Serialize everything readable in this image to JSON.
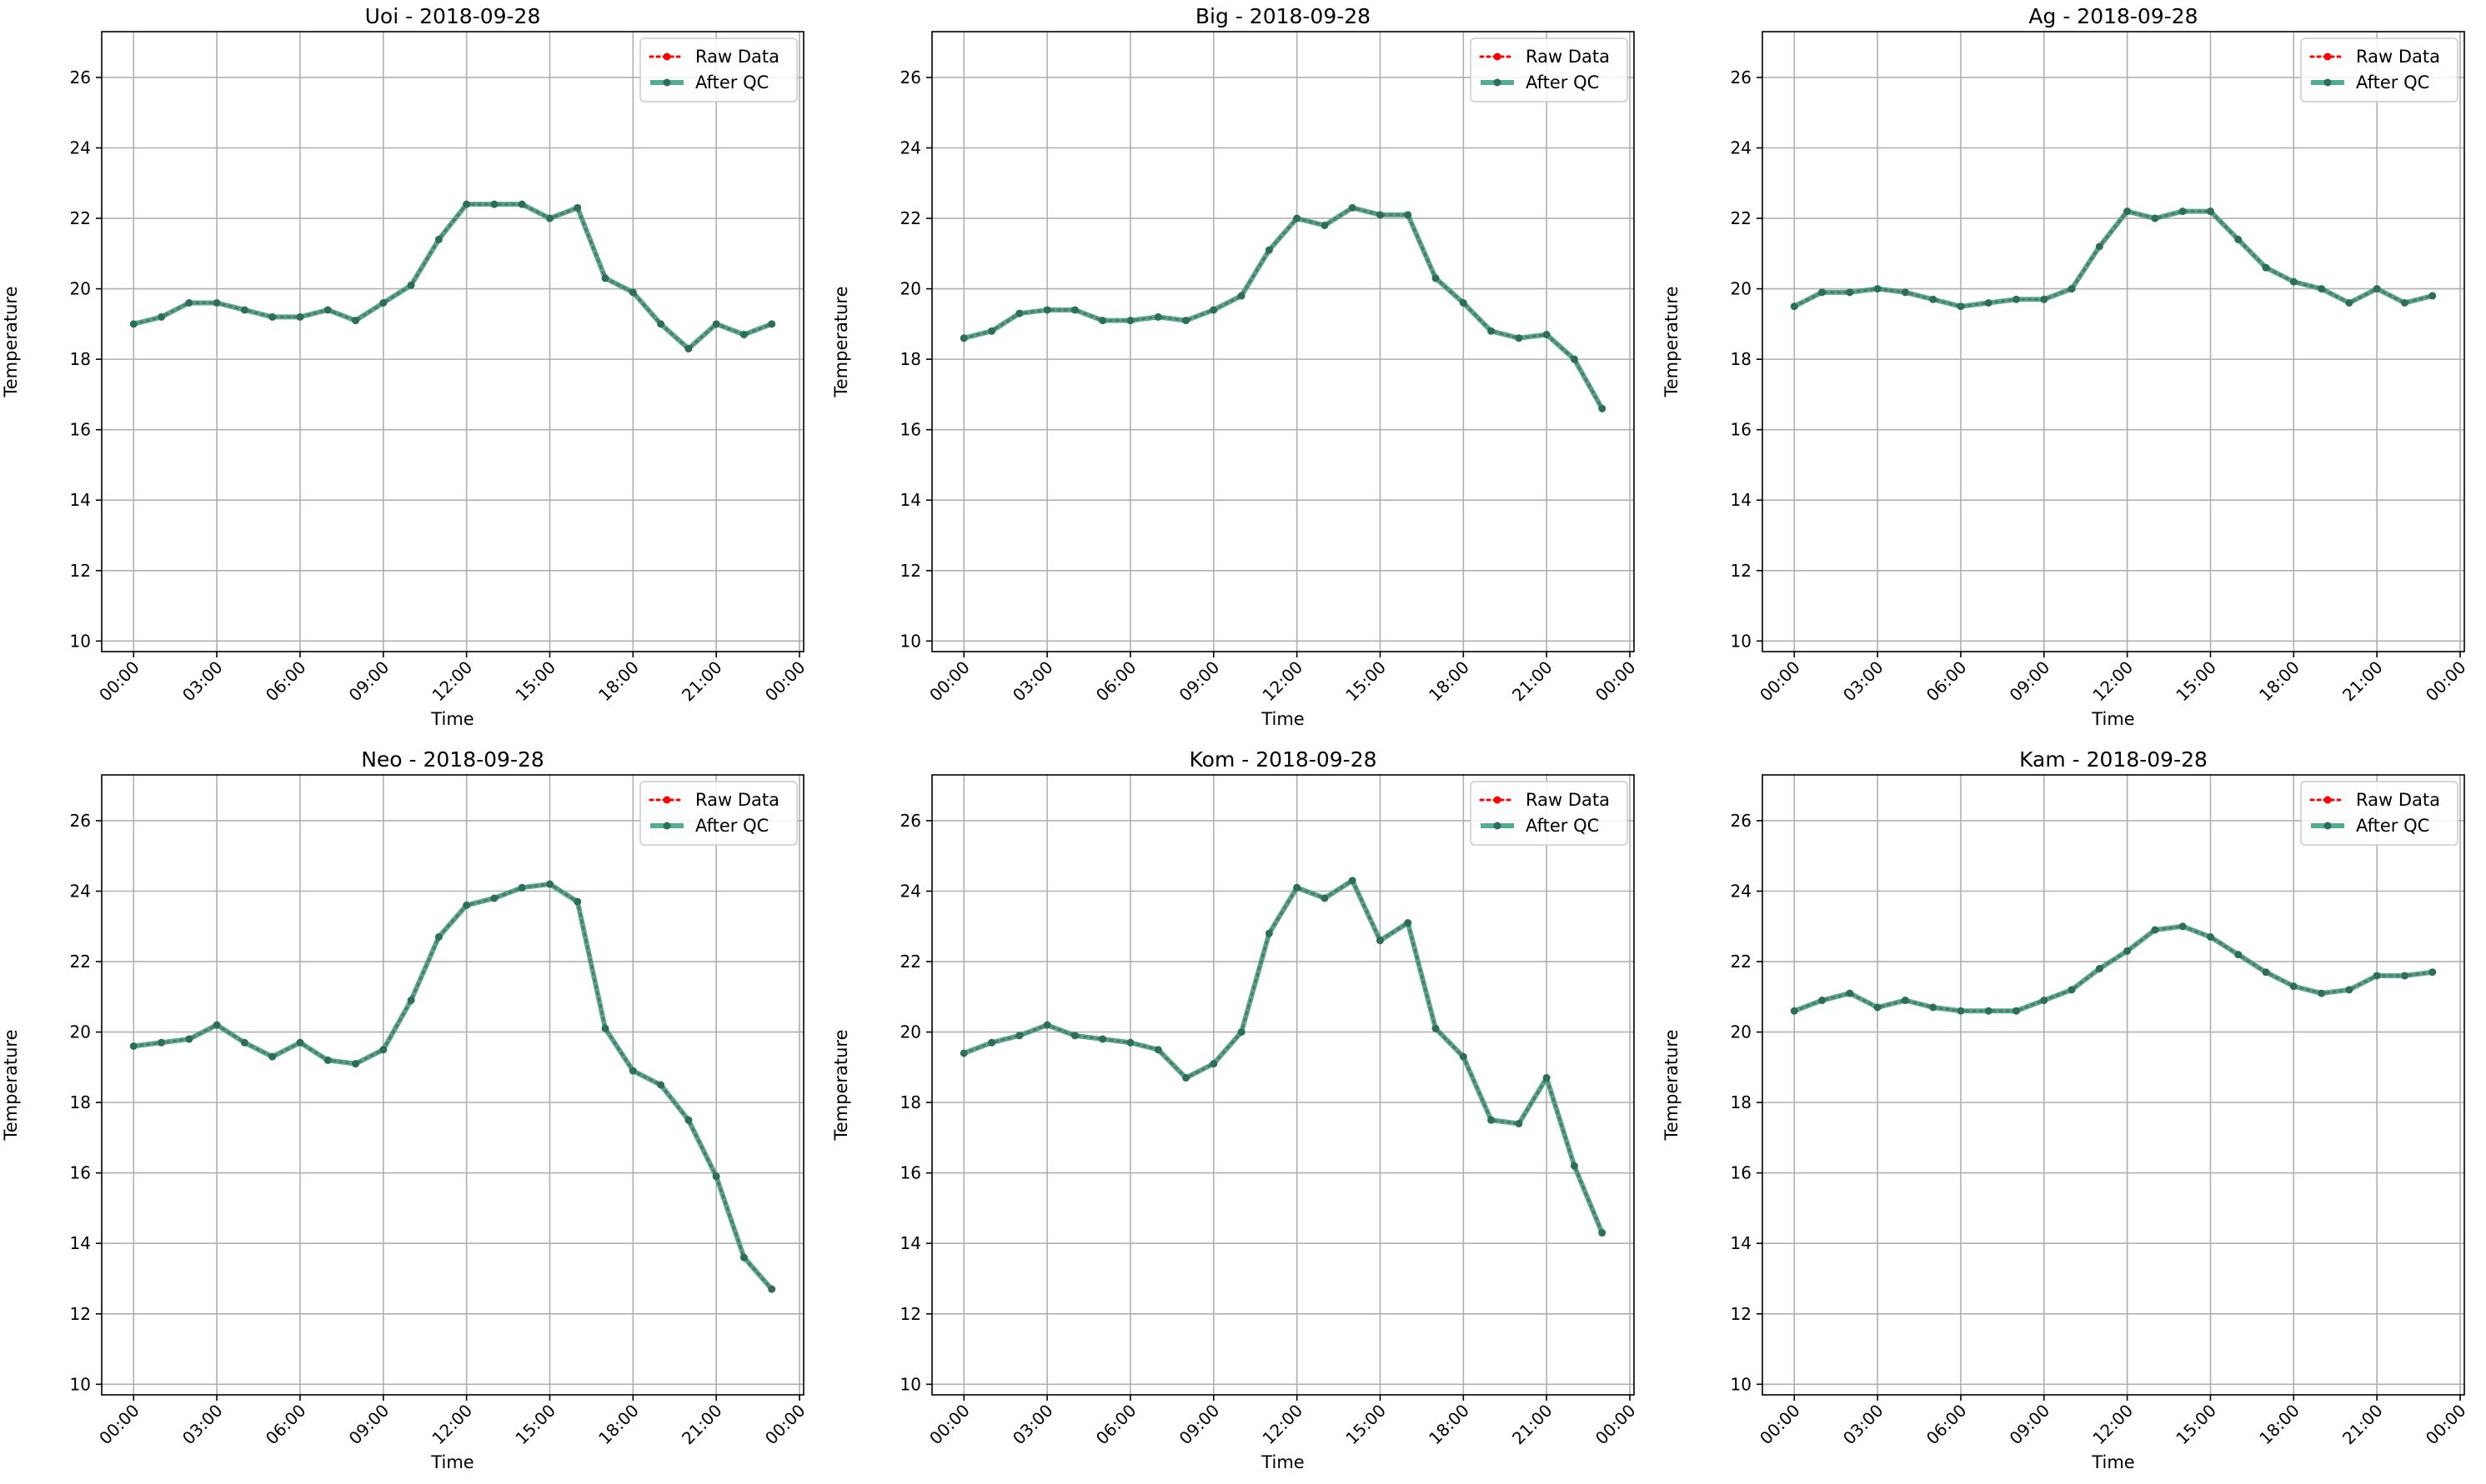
{
  "chart_data": [
    {
      "type": "line",
      "title": "Uoi - 2018-09-28",
      "xlabel": "Time",
      "ylabel": "Temperature",
      "ylim": [
        9.7,
        27.3
      ],
      "yticks": [
        "10",
        "12",
        "14",
        "16",
        "18",
        "20",
        "22",
        "24",
        "26"
      ],
      "xticks": [
        "00:00",
        "03:00",
        "06:00",
        "09:00",
        "12:00",
        "15:00",
        "18:00",
        "21:00",
        "00:00"
      ],
      "grid": true,
      "legend_position": "top-right",
      "x": [
        "00:00",
        "01:00",
        "02:00",
        "03:00",
        "04:00",
        "05:00",
        "06:00",
        "07:00",
        "08:00",
        "09:00",
        "10:00",
        "11:00",
        "12:00",
        "13:00",
        "14:00",
        "15:00",
        "16:00",
        "17:00",
        "18:00",
        "19:00",
        "20:00",
        "21:00",
        "22:00",
        "23:00"
      ],
      "series": [
        {
          "name": "Raw Data",
          "color": "#ff0000",
          "style": "dotted",
          "values": [
            19.0,
            19.2,
            19.6,
            19.6,
            19.4,
            19.2,
            19.2,
            19.4,
            19.1,
            19.6,
            20.1,
            21.4,
            22.4,
            22.4,
            22.4,
            22.0,
            22.3,
            20.3,
            19.9,
            19.0,
            18.3,
            19.0,
            18.7,
            19.0
          ]
        },
        {
          "name": "After QC",
          "color": "#2e9a7a",
          "style": "solid",
          "values": [
            19.0,
            19.2,
            19.6,
            19.6,
            19.4,
            19.2,
            19.2,
            19.4,
            19.1,
            19.6,
            20.1,
            21.4,
            22.4,
            22.4,
            22.4,
            22.0,
            22.3,
            20.3,
            19.9,
            19.0,
            18.3,
            19.0,
            18.7,
            19.0
          ]
        }
      ]
    },
    {
      "type": "line",
      "title": "Big - 2018-09-28",
      "xlabel": "Time",
      "ylabel": "Temperature",
      "ylim": [
        9.7,
        27.3
      ],
      "yticks": [
        "10",
        "12",
        "14",
        "16",
        "18",
        "20",
        "22",
        "24",
        "26"
      ],
      "xticks": [
        "00:00",
        "03:00",
        "06:00",
        "09:00",
        "12:00",
        "15:00",
        "18:00",
        "21:00",
        "00:00"
      ],
      "grid": true,
      "legend_position": "top-right",
      "x": [
        "00:00",
        "01:00",
        "02:00",
        "03:00",
        "04:00",
        "05:00",
        "06:00",
        "07:00",
        "08:00",
        "09:00",
        "10:00",
        "11:00",
        "12:00",
        "13:00",
        "14:00",
        "15:00",
        "16:00",
        "17:00",
        "18:00",
        "19:00",
        "20:00",
        "21:00",
        "22:00",
        "23:00"
      ],
      "series": [
        {
          "name": "Raw Data",
          "color": "#ff0000",
          "style": "dotted",
          "values": [
            18.6,
            18.8,
            19.3,
            19.4,
            19.4,
            19.1,
            19.1,
            19.2,
            19.1,
            19.4,
            19.8,
            21.1,
            22.0,
            21.8,
            22.3,
            22.1,
            22.1,
            20.3,
            19.6,
            18.8,
            18.6,
            18.7,
            18.0,
            16.6
          ]
        },
        {
          "name": "After QC",
          "color": "#2e9a7a",
          "style": "solid",
          "values": [
            18.6,
            18.8,
            19.3,
            19.4,
            19.4,
            19.1,
            19.1,
            19.2,
            19.1,
            19.4,
            19.8,
            21.1,
            22.0,
            21.8,
            22.3,
            22.1,
            22.1,
            20.3,
            19.6,
            18.8,
            18.6,
            18.7,
            18.0,
            16.6
          ]
        }
      ]
    },
    {
      "type": "line",
      "title": "Ag - 2018-09-28",
      "xlabel": "Time",
      "ylabel": "Temperature",
      "ylim": [
        9.7,
        27.3
      ],
      "yticks": [
        "10",
        "12",
        "14",
        "16",
        "18",
        "20",
        "22",
        "24",
        "26"
      ],
      "xticks": [
        "00:00",
        "03:00",
        "06:00",
        "09:00",
        "12:00",
        "15:00",
        "18:00",
        "21:00",
        "00:00"
      ],
      "grid": true,
      "legend_position": "top-right",
      "x": [
        "00:00",
        "01:00",
        "02:00",
        "03:00",
        "04:00",
        "05:00",
        "06:00",
        "07:00",
        "08:00",
        "09:00",
        "10:00",
        "11:00",
        "12:00",
        "13:00",
        "14:00",
        "15:00",
        "16:00",
        "17:00",
        "18:00",
        "19:00",
        "20:00",
        "21:00",
        "22:00",
        "23:00"
      ],
      "series": [
        {
          "name": "Raw Data",
          "color": "#ff0000",
          "style": "dotted",
          "values": [
            19.5,
            19.9,
            19.9,
            20.0,
            19.9,
            19.7,
            19.5,
            19.6,
            19.7,
            19.7,
            20.0,
            21.2,
            22.2,
            22.0,
            22.2,
            22.2,
            21.4,
            20.6,
            20.2,
            20.0,
            19.6,
            20.0,
            19.6,
            19.8
          ]
        },
        {
          "name": "After QC",
          "color": "#2e9a7a",
          "style": "solid",
          "values": [
            19.5,
            19.9,
            19.9,
            20.0,
            19.9,
            19.7,
            19.5,
            19.6,
            19.7,
            19.7,
            20.0,
            21.2,
            22.2,
            22.0,
            22.2,
            22.2,
            21.4,
            20.6,
            20.2,
            20.0,
            19.6,
            20.0,
            19.6,
            19.8
          ]
        }
      ]
    },
    {
      "type": "line",
      "title": "Neo - 2018-09-28",
      "xlabel": "Time",
      "ylabel": "Temperature",
      "ylim": [
        9.7,
        27.3
      ],
      "yticks": [
        "10",
        "12",
        "14",
        "16",
        "18",
        "20",
        "22",
        "24",
        "26"
      ],
      "xticks": [
        "00:00",
        "03:00",
        "06:00",
        "09:00",
        "12:00",
        "15:00",
        "18:00",
        "21:00",
        "00:00"
      ],
      "grid": true,
      "legend_position": "top-right",
      "x": [
        "00:00",
        "01:00",
        "02:00",
        "03:00",
        "04:00",
        "05:00",
        "06:00",
        "07:00",
        "08:00",
        "09:00",
        "10:00",
        "11:00",
        "12:00",
        "13:00",
        "14:00",
        "15:00",
        "16:00",
        "17:00",
        "18:00",
        "19:00",
        "20:00",
        "21:00",
        "22:00",
        "23:00"
      ],
      "series": [
        {
          "name": "Raw Data",
          "color": "#ff0000",
          "style": "dotted",
          "values": [
            19.6,
            19.7,
            19.8,
            20.2,
            19.7,
            19.3,
            19.7,
            19.2,
            19.1,
            19.5,
            20.9,
            22.7,
            23.6,
            23.8,
            24.1,
            24.2,
            23.7,
            20.1,
            18.9,
            18.5,
            17.5,
            15.9,
            13.6,
            12.7
          ]
        },
        {
          "name": "After QC",
          "color": "#2e9a7a",
          "style": "solid",
          "values": [
            19.6,
            19.7,
            19.8,
            20.2,
            19.7,
            19.3,
            19.7,
            19.2,
            19.1,
            19.5,
            20.9,
            22.7,
            23.6,
            23.8,
            24.1,
            24.2,
            23.7,
            20.1,
            18.9,
            18.5,
            17.5,
            15.9,
            13.6,
            12.7
          ]
        }
      ]
    },
    {
      "type": "line",
      "title": "Kom - 2018-09-28",
      "xlabel": "Time",
      "ylabel": "Temperature",
      "ylim": [
        9.7,
        27.3
      ],
      "yticks": [
        "10",
        "12",
        "14",
        "16",
        "18",
        "20",
        "22",
        "24",
        "26"
      ],
      "xticks": [
        "00:00",
        "03:00",
        "06:00",
        "09:00",
        "12:00",
        "15:00",
        "18:00",
        "21:00",
        "00:00"
      ],
      "grid": true,
      "legend_position": "top-right",
      "x": [
        "00:00",
        "01:00",
        "02:00",
        "03:00",
        "04:00",
        "05:00",
        "06:00",
        "07:00",
        "08:00",
        "09:00",
        "10:00",
        "11:00",
        "12:00",
        "13:00",
        "14:00",
        "15:00",
        "16:00",
        "17:00",
        "18:00",
        "19:00",
        "20:00",
        "21:00",
        "22:00",
        "23:00"
      ],
      "series": [
        {
          "name": "Raw Data",
          "color": "#ff0000",
          "style": "dotted",
          "values": [
            19.4,
            19.7,
            19.9,
            20.2,
            19.9,
            19.8,
            19.7,
            19.5,
            18.7,
            19.1,
            20.0,
            22.8,
            24.1,
            23.8,
            24.3,
            22.6,
            23.1,
            20.1,
            19.3,
            17.5,
            17.4,
            18.7,
            16.2,
            14.3
          ]
        },
        {
          "name": "After QC",
          "color": "#2e9a7a",
          "style": "solid",
          "values": [
            19.4,
            19.7,
            19.9,
            20.2,
            19.9,
            19.8,
            19.7,
            19.5,
            18.7,
            19.1,
            20.0,
            22.8,
            24.1,
            23.8,
            24.3,
            22.6,
            23.1,
            20.1,
            19.3,
            17.5,
            17.4,
            18.7,
            16.2,
            14.3
          ]
        }
      ]
    },
    {
      "type": "line",
      "title": "Kam - 2018-09-28",
      "xlabel": "Time",
      "ylabel": "Temperature",
      "ylim": [
        9.7,
        27.3
      ],
      "yticks": [
        "10",
        "12",
        "14",
        "16",
        "18",
        "20",
        "22",
        "24",
        "26"
      ],
      "xticks": [
        "00:00",
        "03:00",
        "06:00",
        "09:00",
        "12:00",
        "15:00",
        "18:00",
        "21:00",
        "00:00"
      ],
      "grid": true,
      "legend_position": "top-right",
      "x": [
        "00:00",
        "01:00",
        "02:00",
        "03:00",
        "04:00",
        "05:00",
        "06:00",
        "07:00",
        "08:00",
        "09:00",
        "10:00",
        "11:00",
        "12:00",
        "13:00",
        "14:00",
        "15:00",
        "16:00",
        "17:00",
        "18:00",
        "19:00",
        "20:00",
        "21:00",
        "22:00",
        "23:00"
      ],
      "series": [
        {
          "name": "Raw Data",
          "color": "#ff0000",
          "style": "dotted",
          "values": [
            20.6,
            20.9,
            21.1,
            20.7,
            20.9,
            20.7,
            20.6,
            20.6,
            20.6,
            20.9,
            21.2,
            21.8,
            22.3,
            22.9,
            23.0,
            22.7,
            22.2,
            21.7,
            21.3,
            21.1,
            21.2,
            21.6,
            21.6,
            21.7
          ]
        },
        {
          "name": "After QC",
          "color": "#2e9a7a",
          "style": "solid",
          "values": [
            20.6,
            20.9,
            21.1,
            20.7,
            20.9,
            20.7,
            20.6,
            20.6,
            20.6,
            20.9,
            21.2,
            21.8,
            22.3,
            22.9,
            23.0,
            22.7,
            22.2,
            21.7,
            21.3,
            21.1,
            21.2,
            21.6,
            21.6,
            21.7
          ]
        }
      ]
    }
  ]
}
